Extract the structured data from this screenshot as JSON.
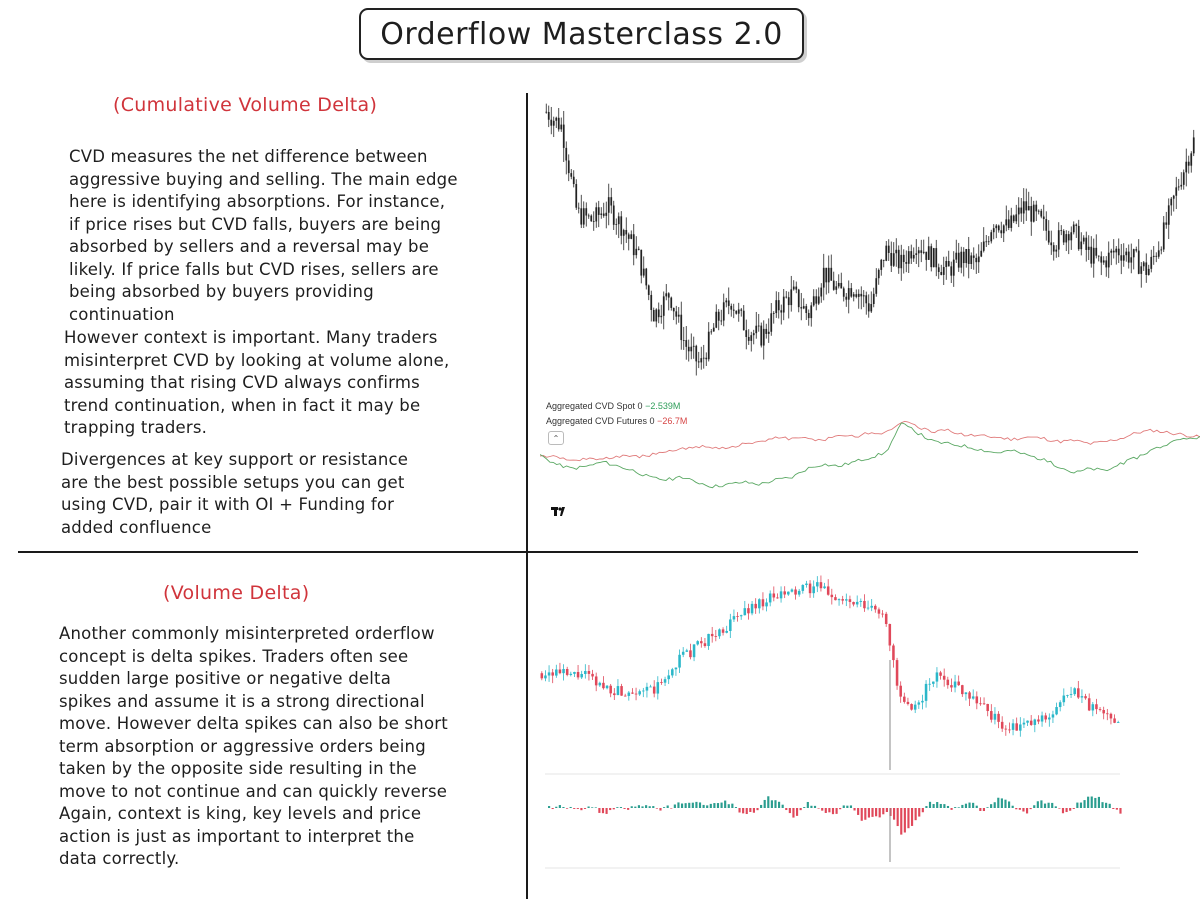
{
  "title": "Orderflow Masterclass 2.0",
  "cvd_section": {
    "heading": "(Cumulative Volume Delta)",
    "paragraphs": [
      [
        "CVD measures the net difference between",
        "aggressive buying and selling. The main edge",
        "here is identifying absorptions. For instance,",
        "if price rises but CVD falls, buyers are being",
        "absorbed by sellers and a reversal may be",
        "likely. If price falls but CVD rises, sellers are",
        "being absorbed by buyers providing",
        "continuation"
      ],
      [
        "However context is important. Many traders",
        "misinterpret CVD by looking at volume alone,",
        "assuming that rising CVD always confirms",
        "trend continuation, when in fact it may be",
        "trapping traders."
      ],
      [
        "Divergences at key support or resistance",
        "are the best possible setups you can get",
        "using CVD, pair it with OI + Funding for",
        "added confluence"
      ]
    ],
    "chart": {
      "legend": [
        {
          "label": "Aggregated CVD Spot 0",
          "value": "−2.539M",
          "color": "#2f9e5a"
        },
        {
          "label": "Aggregated CVD Futures 0",
          "value": "−26.7M",
          "color": "#d64545"
        }
      ],
      "collapse_icon": "chevron-up-icon",
      "logo": "TV"
    }
  },
  "delta_section": {
    "heading": "(Volume Delta)",
    "paragraph": [
      "Another commonly misinterpreted orderflow",
      "concept is delta spikes. Traders often see",
      "sudden large positive or negative delta",
      "spikes and assume it is a strong directional",
      "move. However delta spikes can also be short",
      "term absorption or aggressive orders being",
      "taken by the opposite side resulting in the",
      "move to not continue and can quickly reverse",
      "Again, context is king, key levels and price",
      "action is just as important to interpret the",
      "data correctly."
    ]
  },
  "chart_data": [
    {
      "type": "line",
      "series": [
        {
          "values": [
            100,
            96,
            72,
            70,
            74,
            68,
            60,
            44,
            50,
            36,
            30,
            42,
            48,
            40,
            38,
            46,
            50,
            44,
            56,
            50,
            52,
            46,
            62,
            58,
            64,
            60,
            56,
            60,
            58,
            70,
            68,
            74,
            70,
            64,
            68,
            62,
            58,
            62,
            60,
            56,
            66,
            80,
            92
          ]
        }
      ]
    },
    {
      "type": "line",
      "series": [
        {
          "values": [
            50,
            48,
            45,
            47,
            46,
            49,
            48,
            50,
            52,
            55,
            58,
            57,
            56,
            60,
            61,
            66,
            64,
            65,
            63,
            68,
            66,
            70,
            69,
            80,
            75,
            70,
            72,
            68,
            67,
            66,
            64,
            66,
            65,
            62,
            63,
            60,
            62,
            65,
            70,
            72,
            70,
            68,
            66
          ]
        },
        {
          "values": [
            50,
            42,
            38,
            40,
            44,
            40,
            36,
            30,
            28,
            30,
            26,
            22,
            24,
            26,
            24,
            28,
            30,
            38,
            42,
            40,
            44,
            48,
            52,
            78,
            70,
            62,
            60,
            58,
            55,
            52,
            54,
            50,
            46,
            40,
            34,
            38,
            36,
            42,
            48,
            55,
            60,
            64,
            66
          ]
        }
      ]
    },
    {
      "type": "line",
      "series": [
        {
          "values": [
            52,
            53,
            50,
            52,
            46,
            44,
            42,
            44,
            42,
            48,
            60,
            64,
            70,
            74,
            80,
            86,
            90,
            92,
            94,
            96,
            98,
            94,
            90,
            88,
            86,
            84,
            40,
            30,
            44,
            52,
            46,
            42,
            36,
            28,
            22,
            24,
            26,
            30,
            38,
            42,
            34,
            30,
            28
          ]
        }
      ]
    },
    {
      "type": "bar",
      "values": [
        0,
        1,
        -3,
        2,
        -6,
        1,
        0,
        3,
        -2,
        2,
        6,
        4,
        3,
        8,
        -4,
        -6,
        12,
        4,
        -10,
        6,
        -2,
        -6,
        4,
        -12,
        -10,
        -4,
        -30,
        -14,
        5,
        4,
        -2,
        6,
        -4,
        10,
        4,
        -6,
        8,
        4,
        -6,
        6,
        14,
        4,
        -4
      ]
    }
  ]
}
